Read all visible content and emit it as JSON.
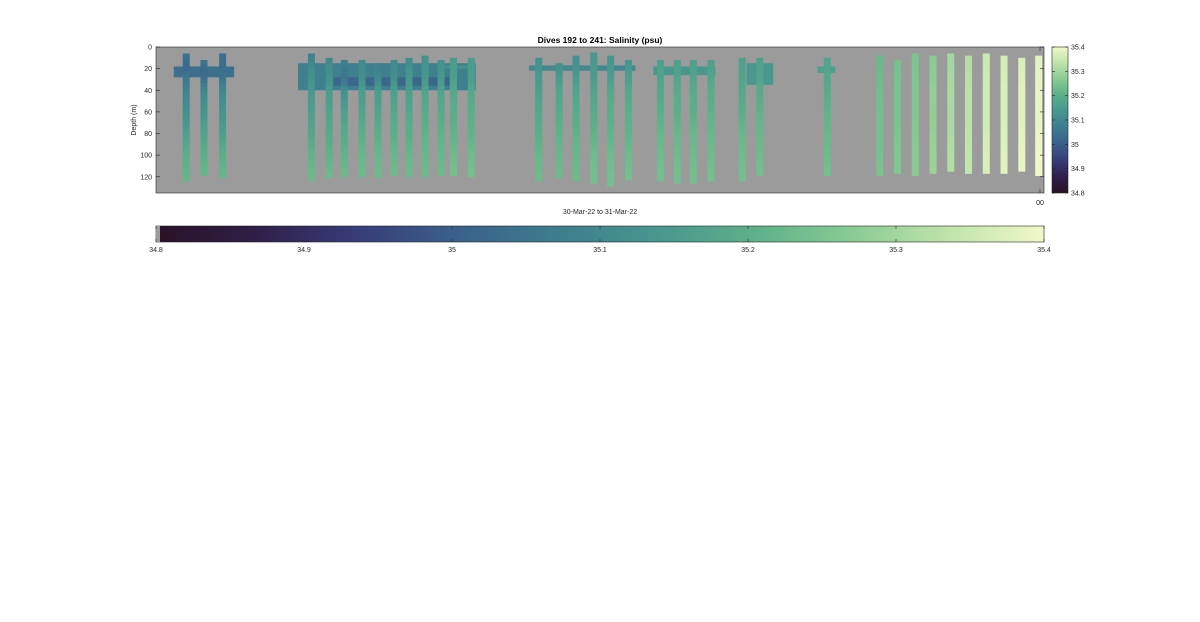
{
  "chart_data": {
    "type": "heatmap",
    "title": "Dives 192 to 241: Salinity (psu)",
    "xlabel": "30-Mar-22 to 31-Mar-22",
    "ylabel": "Depth (m)",
    "ylim": [
      0,
      135
    ],
    "y_reversed": true,
    "yticks": [
      "0",
      "20",
      "40",
      "60",
      "80",
      "100",
      "120"
    ],
    "grid": false,
    "background_color": "#9b9b9b",
    "clim": [
      34.8,
      35.4
    ],
    "colorbar_ticks": [
      "35.4",
      "35.3",
      "35.2",
      "35.1",
      "35",
      "34.9",
      "34.8"
    ],
    "bottom_colorbar_ticks": [
      "34.8",
      "34.9",
      "35",
      "35.1",
      "35.2",
      "35.3",
      "35.4"
    ],
    "x_tick_label": "00",
    "colormap": [
      "#281225",
      "#2f1f48",
      "#383b78",
      "#3a5f8a",
      "#3d7b8e",
      "#46958e",
      "#5aaf8a",
      "#86ca92",
      "#bde3a9",
      "#f0f8c8"
    ],
    "profiles": [
      {
        "x": 0.034,
        "z": [
          [
            6,
            35.05
          ],
          [
            19,
            35.02
          ],
          [
            25,
            35.05
          ],
          [
            40,
            35.09
          ],
          [
            60,
            35.12
          ],
          [
            80,
            35.16
          ],
          [
            100,
            35.2
          ],
          [
            124,
            35.22
          ]
        ]
      },
      {
        "x": 0.054,
        "z": [
          [
            12,
            35.05
          ],
          [
            22,
            35.02
          ],
          [
            30,
            35.05
          ],
          [
            40,
            35.1
          ],
          [
            60,
            35.13
          ],
          [
            80,
            35.17
          ],
          [
            100,
            35.2
          ],
          [
            119,
            35.22
          ]
        ]
      },
      {
        "x": 0.075,
        "z": [
          [
            6,
            35.04
          ],
          [
            20,
            35.03
          ],
          [
            30,
            35.06
          ],
          [
            40,
            35.1
          ],
          [
            60,
            35.13
          ],
          [
            80,
            35.16
          ],
          [
            100,
            35.2
          ],
          [
            121,
            35.22
          ]
        ]
      },
      {
        "x": 0.175,
        "z": [
          [
            6,
            35.08
          ],
          [
            25,
            35.12
          ],
          [
            40,
            35.14
          ],
          [
            60,
            35.16
          ],
          [
            80,
            35.18
          ],
          [
            100,
            35.21
          ],
          [
            124,
            35.23
          ]
        ]
      },
      {
        "x": 0.195,
        "z": [
          [
            10,
            35.1
          ],
          [
            25,
            35.12
          ],
          [
            40,
            35.15
          ],
          [
            60,
            35.17
          ],
          [
            80,
            35.19
          ],
          [
            100,
            35.21
          ],
          [
            121,
            35.23
          ]
        ]
      },
      {
        "x": 0.212,
        "z": [
          [
            12,
            35.08
          ],
          [
            30,
            35.05
          ],
          [
            40,
            35.12
          ],
          [
            60,
            35.16
          ],
          [
            80,
            35.19
          ],
          [
            100,
            35.21
          ],
          [
            120,
            35.23
          ]
        ]
      },
      {
        "x": 0.232,
        "z": [
          [
            12,
            35.1
          ],
          [
            30,
            35.12
          ],
          [
            40,
            35.15
          ],
          [
            60,
            35.17
          ],
          [
            80,
            35.2
          ],
          [
            100,
            35.22
          ],
          [
            120,
            35.23
          ]
        ]
      },
      {
        "x": 0.25,
        "z": [
          [
            15,
            35.08
          ],
          [
            30,
            35.1
          ],
          [
            40,
            35.15
          ],
          [
            60,
            35.17
          ],
          [
            80,
            35.2
          ],
          [
            100,
            35.22
          ],
          [
            121,
            35.23
          ]
        ]
      },
      {
        "x": 0.268,
        "z": [
          [
            12,
            35.1
          ],
          [
            30,
            35.12
          ],
          [
            40,
            35.16
          ],
          [
            60,
            35.18
          ],
          [
            80,
            35.2
          ],
          [
            100,
            35.22
          ],
          [
            119,
            35.23
          ]
        ]
      },
      {
        "x": 0.285,
        "z": [
          [
            10,
            35.11
          ],
          [
            30,
            35.14
          ],
          [
            40,
            35.16
          ],
          [
            60,
            35.18
          ],
          [
            80,
            35.2
          ],
          [
            100,
            35.22
          ],
          [
            120,
            35.23
          ]
        ]
      },
      {
        "x": 0.303,
        "z": [
          [
            8,
            35.12
          ],
          [
            30,
            35.14
          ],
          [
            40,
            35.17
          ],
          [
            60,
            35.19
          ],
          [
            80,
            35.21
          ],
          [
            100,
            35.22
          ],
          [
            120,
            35.23
          ]
        ]
      },
      {
        "x": 0.321,
        "z": [
          [
            12,
            35.12
          ],
          [
            30,
            35.14
          ],
          [
            40,
            35.17
          ],
          [
            60,
            35.19
          ],
          [
            80,
            35.21
          ],
          [
            100,
            35.22
          ],
          [
            119,
            35.23
          ]
        ]
      },
      {
        "x": 0.336,
        "z": [
          [
            17,
            35.12
          ],
          [
            20,
            35.12
          ]
        ]
      },
      {
        "x": 0.335,
        "z": [
          [
            10,
            35.15
          ],
          [
            30,
            35.16
          ],
          [
            40,
            35.18
          ],
          [
            60,
            35.2
          ],
          [
            80,
            35.21
          ],
          [
            100,
            35.23
          ],
          [
            119,
            35.24
          ]
        ]
      },
      {
        "x": 0.355,
        "z": [
          [
            10,
            35.15
          ],
          [
            30,
            35.16
          ],
          [
            40,
            35.18
          ],
          [
            60,
            35.2
          ],
          [
            80,
            35.21
          ],
          [
            100,
            35.23
          ],
          [
            120,
            35.24
          ]
        ]
      },
      {
        "x": 0.431,
        "z": [
          [
            10,
            35.12
          ],
          [
            25,
            35.14
          ],
          [
            40,
            35.16
          ],
          [
            60,
            35.18
          ],
          [
            80,
            35.2
          ],
          [
            100,
            35.22
          ],
          [
            124,
            35.23
          ]
        ]
      },
      {
        "x": 0.454,
        "z": [
          [
            15,
            35.12
          ],
          [
            25,
            35.14
          ],
          [
            40,
            35.17
          ],
          [
            60,
            35.19
          ],
          [
            80,
            35.21
          ],
          [
            100,
            35.22
          ],
          [
            121,
            35.23
          ]
        ]
      },
      {
        "x": 0.473,
        "z": [
          [
            8,
            35.12
          ],
          [
            25,
            35.14
          ],
          [
            40,
            35.17
          ],
          [
            60,
            35.19
          ],
          [
            80,
            35.21
          ],
          [
            100,
            35.22
          ],
          [
            124,
            35.23
          ]
        ]
      },
      {
        "x": 0.493,
        "z": [
          [
            5,
            35.14
          ],
          [
            25,
            35.15
          ],
          [
            40,
            35.17
          ],
          [
            60,
            35.19
          ],
          [
            80,
            35.21
          ],
          [
            100,
            35.23
          ],
          [
            126,
            35.24
          ]
        ]
      },
      {
        "x": 0.512,
        "z": [
          [
            8,
            35.13
          ],
          [
            25,
            35.15
          ],
          [
            40,
            35.18
          ],
          [
            60,
            35.2
          ],
          [
            80,
            35.21
          ],
          [
            100,
            35.23
          ],
          [
            129,
            35.24
          ]
        ]
      },
      {
        "x": 0.532,
        "z": [
          [
            12,
            35.13
          ],
          [
            25,
            35.15
          ],
          [
            40,
            35.18
          ],
          [
            60,
            35.2
          ],
          [
            80,
            35.21
          ],
          [
            100,
            35.23
          ],
          [
            123,
            35.24
          ]
        ]
      },
      {
        "x": 0.568,
        "z": [
          [
            12,
            35.16
          ],
          [
            25,
            35.17
          ],
          [
            40,
            35.18
          ],
          [
            60,
            35.2
          ],
          [
            80,
            35.22
          ],
          [
            100,
            35.23
          ],
          [
            124,
            35.24
          ]
        ]
      },
      {
        "x": 0.587,
        "z": [
          [
            12,
            35.16
          ],
          [
            25,
            35.17
          ],
          [
            40,
            35.19
          ],
          [
            60,
            35.2
          ],
          [
            80,
            35.22
          ],
          [
            100,
            35.23
          ],
          [
            126,
            35.24
          ]
        ]
      },
      {
        "x": 0.605,
        "z": [
          [
            12,
            35.16
          ],
          [
            25,
            35.17
          ],
          [
            40,
            35.19
          ],
          [
            60,
            35.2
          ],
          [
            80,
            35.22
          ],
          [
            100,
            35.23
          ],
          [
            126,
            35.24
          ]
        ]
      },
      {
        "x": 0.625,
        "z": [
          [
            12,
            35.16
          ],
          [
            25,
            35.17
          ],
          [
            40,
            35.19
          ],
          [
            60,
            35.21
          ],
          [
            80,
            35.22
          ],
          [
            100,
            35.23
          ],
          [
            124,
            35.24
          ]
        ]
      },
      {
        "x": 0.66,
        "z": [
          [
            10,
            35.16
          ],
          [
            25,
            35.17
          ],
          [
            40,
            35.18
          ],
          [
            60,
            35.2
          ],
          [
            80,
            35.22
          ],
          [
            100,
            35.23
          ],
          [
            124,
            35.24
          ]
        ]
      },
      {
        "x": 0.68,
        "z": [
          [
            10,
            35.16
          ],
          [
            25,
            35.17
          ],
          [
            40,
            35.19
          ],
          [
            60,
            35.21
          ],
          [
            80,
            35.22
          ],
          [
            100,
            35.23
          ],
          [
            119,
            35.24
          ]
        ]
      },
      {
        "x": 0.756,
        "z": [
          [
            10,
            35.17
          ],
          [
            25,
            35.18
          ],
          [
            40,
            35.19
          ],
          [
            60,
            35.21
          ],
          [
            80,
            35.22
          ],
          [
            100,
            35.23
          ],
          [
            119,
            35.24
          ]
        ]
      },
      {
        "x": 0.815,
        "z": [
          [
            8,
            35.22
          ],
          [
            30,
            35.23
          ],
          [
            60,
            35.24
          ],
          [
            90,
            35.24
          ],
          [
            119,
            35.25
          ]
        ]
      },
      {
        "x": 0.835,
        "z": [
          [
            12,
            35.24
          ],
          [
            40,
            35.25
          ],
          [
            70,
            35.25
          ],
          [
            100,
            35.26
          ],
          [
            117,
            35.26
          ]
        ]
      },
      {
        "x": 0.855,
        "z": [
          [
            6,
            35.25
          ],
          [
            40,
            35.26
          ],
          [
            70,
            35.26
          ],
          [
            100,
            35.27
          ],
          [
            119,
            35.27
          ]
        ]
      },
      {
        "x": 0.875,
        "z": [
          [
            8,
            35.27
          ],
          [
            40,
            35.28
          ],
          [
            70,
            35.28
          ],
          [
            100,
            35.29
          ],
          [
            117,
            35.29
          ]
        ]
      },
      {
        "x": 0.895,
        "z": [
          [
            6,
            35.3
          ],
          [
            40,
            35.31
          ],
          [
            70,
            35.31
          ],
          [
            100,
            35.32
          ],
          [
            115,
            35.32
          ]
        ]
      },
      {
        "x": 0.915,
        "z": [
          [
            8,
            35.32
          ],
          [
            40,
            35.33
          ],
          [
            70,
            35.33
          ],
          [
            100,
            35.34
          ],
          [
            117,
            35.34
          ]
        ]
      },
      {
        "x": 0.935,
        "z": [
          [
            6,
            35.35
          ],
          [
            40,
            35.36
          ],
          [
            70,
            35.36
          ],
          [
            100,
            35.37
          ],
          [
            117,
            35.37
          ]
        ]
      },
      {
        "x": 0.955,
        "z": [
          [
            8,
            35.36
          ],
          [
            40,
            35.37
          ],
          [
            70,
            35.37
          ],
          [
            100,
            35.38
          ],
          [
            117,
            35.38
          ]
        ]
      },
      {
        "x": 0.975,
        "z": [
          [
            10,
            35.37
          ],
          [
            40,
            35.38
          ],
          [
            70,
            35.38
          ],
          [
            100,
            35.39
          ],
          [
            115,
            35.39
          ]
        ]
      },
      {
        "x": 0.994,
        "z": [
          [
            8,
            35.38
          ],
          [
            40,
            35.39
          ],
          [
            70,
            35.39
          ],
          [
            100,
            35.4
          ],
          [
            119,
            35.4
          ]
        ]
      }
    ],
    "surface_blobs": [
      {
        "x0": 0.02,
        "x1": 0.088,
        "d0": 18,
        "d1": 28,
        "value": 35.04
      },
      {
        "x0": 0.16,
        "x1": 0.36,
        "d0": 15,
        "d1": 40,
        "value": 35.08
      },
      {
        "x0": 0.2,
        "x1": 0.33,
        "d0": 28,
        "d1": 36,
        "value": 35.02
      },
      {
        "x0": 0.32,
        "x1": 0.36,
        "d0": 17,
        "d1": 20,
        "value": 35.12
      },
      {
        "x0": 0.42,
        "x1": 0.54,
        "d0": 17,
        "d1": 22,
        "value": 35.1
      },
      {
        "x0": 0.56,
        "x1": 0.63,
        "d0": 18,
        "d1": 26,
        "value": 35.14
      },
      {
        "x0": 0.665,
        "x1": 0.695,
        "d0": 15,
        "d1": 35,
        "value": 35.14
      },
      {
        "x0": 0.745,
        "x1": 0.765,
        "d0": 18,
        "d1": 24,
        "value": 35.16
      }
    ]
  }
}
